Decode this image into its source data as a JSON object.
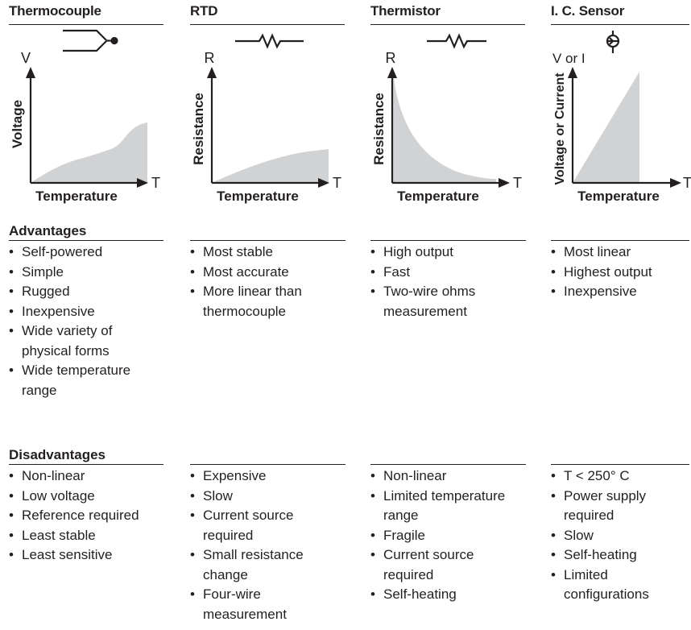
{
  "sensors": [
    {
      "name": "Thermocouple",
      "symbol": "thermocouple-symbol",
      "y_axis_letter": "V",
      "y_axis_label": "Voltage",
      "x_axis_letter": "T",
      "x_axis_label": "Temperature",
      "advantages": [
        "Self-powered",
        "Simple",
        "Rugged",
        "Inexpensive",
        "Wide variety of physical forms",
        "Wide temperature range"
      ],
      "disadvantages": [
        "Non-linear",
        "Low voltage",
        "Reference required",
        "Least stable",
        "Least sensitive"
      ]
    },
    {
      "name": "RTD",
      "symbol": "resistor-symbol",
      "y_axis_letter": "R",
      "y_axis_label": "Resistance",
      "x_axis_letter": "T",
      "x_axis_label": "Temperature",
      "advantages": [
        "Most stable",
        "Most accurate",
        "More linear than thermocouple"
      ],
      "disadvantages": [
        "Expensive",
        "Slow",
        "Current source required",
        "Small resistance change",
        "Four-wire measurement"
      ]
    },
    {
      "name": "Thermistor",
      "symbol": "resistor-symbol",
      "y_axis_letter": "R",
      "y_axis_label": "Resistance",
      "x_axis_letter": "T",
      "x_axis_label": "Temperature",
      "advantages": [
        "High output",
        "Fast",
        "Two-wire ohms measurement"
      ],
      "disadvantages": [
        "Non-linear",
        "Limited temperature range",
        "Fragile",
        "Current source required",
        "Self-heating"
      ]
    },
    {
      "name": "I. C. Sensor",
      "symbol": "current-source-symbol",
      "y_axis_letter": "V or I",
      "y_axis_label": "Voltage or Current",
      "x_axis_letter": "T",
      "x_axis_label": "Temperature",
      "advantages": [
        "Most linear",
        "Highest output",
        "Inexpensive"
      ],
      "disadvantages": [
        "T < 250° C",
        "Power supply required",
        "Slow",
        "Self-heating",
        "Limited configurations"
      ]
    }
  ],
  "section_titles": {
    "advantages": "Advantages",
    "disadvantages": "Disadvantages"
  },
  "bullet_char": "•",
  "colors": {
    "ink": "#231f20",
    "curve_fill": "#d1d2d4"
  }
}
